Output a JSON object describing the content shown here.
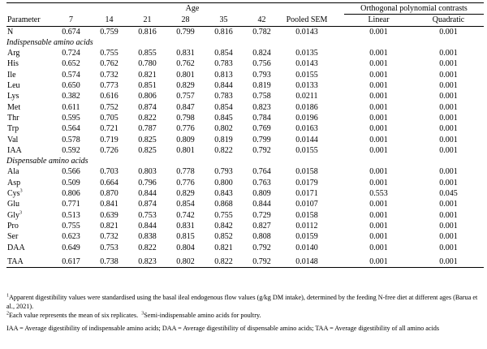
{
  "table": {
    "header": {
      "age_label": "Age",
      "ortho_label": "Orthogonal polynomial contrasts",
      "param_label": "Parameter",
      "ages": [
        "7",
        "14",
        "21",
        "28",
        "35",
        "42"
      ],
      "pooled_sem": "Pooled SEM",
      "linear": "Linear",
      "quadratic": "Quadratic"
    },
    "n_row": {
      "name": "N",
      "values": [
        "0.674",
        "0.759",
        "0.816",
        "0.799",
        "0.816",
        "0.782",
        "0.0143"
      ],
      "linear": "0.001",
      "quadratic": "0.001"
    },
    "sections": [
      {
        "title": "Indispensable amino acids",
        "rows": [
          {
            "name": "Arg",
            "sup": "",
            "values": [
              "0.724",
              "0.755",
              "0.855",
              "0.831",
              "0.854",
              "0.824",
              "0.0135"
            ],
            "linear": "0.001",
            "quadratic": "0.001"
          },
          {
            "name": "His",
            "sup": "",
            "values": [
              "0.652",
              "0.762",
              "0.780",
              "0.762",
              "0.783",
              "0.756",
              "0.0143"
            ],
            "linear": "0.001",
            "quadratic": "0.001"
          },
          {
            "name": "Ile",
            "sup": "",
            "values": [
              "0.574",
              "0.732",
              "0.821",
              "0.801",
              "0.813",
              "0.793",
              "0.0155"
            ],
            "linear": "0.001",
            "quadratic": "0.001"
          },
          {
            "name": "Leu",
            "sup": "",
            "values": [
              "0.650",
              "0.773",
              "0.851",
              "0.829",
              "0.844",
              "0.819",
              "0.0133"
            ],
            "linear": "0.001",
            "quadratic": "0.001"
          },
          {
            "name": "Lys",
            "sup": "",
            "values": [
              "0.382",
              "0.616",
              "0.806",
              "0.757",
              "0.783",
              "0.758",
              "0.0211"
            ],
            "linear": "0.001",
            "quadratic": "0.001"
          },
          {
            "name": "Met",
            "sup": "",
            "values": [
              "0.611",
              "0.752",
              "0.874",
              "0.847",
              "0.854",
              "0.823",
              "0.0186"
            ],
            "linear": "0.001",
            "quadratic": "0.001"
          },
          {
            "name": "Thr",
            "sup": "",
            "values": [
              "0.595",
              "0.705",
              "0.822",
              "0.798",
              "0.845",
              "0.784",
              "0.0196"
            ],
            "linear": "0.001",
            "quadratic": "0.001"
          },
          {
            "name": "Trp",
            "sup": "",
            "values": [
              "0.564",
              "0.721",
              "0.787",
              "0.776",
              "0.802",
              "0.769",
              "0.0163"
            ],
            "linear": "0.001",
            "quadratic": "0.001"
          },
          {
            "name": "Val",
            "sup": "",
            "values": [
              "0.578",
              "0.719",
              "0.825",
              "0.809",
              "0.819",
              "0.799",
              "0.0144"
            ],
            "linear": "0.001",
            "quadratic": "0.001"
          },
          {
            "name": "IAA",
            "sup": "",
            "values": [
              "0.592",
              "0.726",
              "0.825",
              "0.801",
              "0.822",
              "0.792",
              "0.0155"
            ],
            "linear": "0.001",
            "quadratic": "0.001"
          }
        ]
      },
      {
        "title": "Dispensable amino acids",
        "rows": [
          {
            "name": "Ala",
            "sup": "",
            "values": [
              "0.566",
              "0.703",
              "0.803",
              "0.778",
              "0.793",
              "0.764",
              "0.0158"
            ],
            "linear": "0.001",
            "quadratic": "0.001"
          },
          {
            "name": "Asp",
            "sup": "",
            "values": [
              "0.509",
              "0.664",
              "0.796",
              "0.776",
              "0.800",
              "0.763",
              "0.0179"
            ],
            "linear": "0.001",
            "quadratic": "0.001"
          },
          {
            "name": "Cys",
            "sup": "3",
            "values": [
              "0.806",
              "0.870",
              "0.844",
              "0.829",
              "0.843",
              "0.809",
              "0.0171"
            ],
            "linear": "0.553",
            "quadratic": "0.045"
          },
          {
            "name": "Glu",
            "sup": "",
            "values": [
              "0.771",
              "0.841",
              "0.874",
              "0.854",
              "0.868",
              "0.844",
              "0.0107"
            ],
            "linear": "0.001",
            "quadratic": "0.001"
          },
          {
            "name": "Gly",
            "sup": "3",
            "values": [
              "0.513",
              "0.639",
              "0.753",
              "0.742",
              "0.755",
              "0.729",
              "0.0158"
            ],
            "linear": "0.001",
            "quadratic": "0.001"
          },
          {
            "name": "Pro",
            "sup": "",
            "values": [
              "0.755",
              "0.821",
              "0.844",
              "0.831",
              "0.842",
              "0.827",
              "0.0112"
            ],
            "linear": "0.001",
            "quadratic": "0.001"
          },
          {
            "name": "Ser",
            "sup": "",
            "values": [
              "0.623",
              "0.732",
              "0.838",
              "0.815",
              "0.852",
              "0.808",
              "0.0159"
            ],
            "linear": "0.001",
            "quadratic": "0.001"
          },
          {
            "name": "DAA",
            "sup": "",
            "values": [
              "0.649",
              "0.753",
              "0.822",
              "0.804",
              "0.821",
              "0.792",
              "0.0140"
            ],
            "linear": "0.001",
            "quadratic": "0.001"
          }
        ]
      }
    ],
    "taa_row": {
      "name": "TAA",
      "values": [
        "0.617",
        "0.738",
        "0.823",
        "0.802",
        "0.822",
        "0.792",
        "0.0148"
      ],
      "linear": "0.001",
      "quadratic": "0.001"
    }
  },
  "footnotes": {
    "note1_sup": "1",
    "note1": "Apparent digestibility values were standardised using the basal ileal endogenous flow values (g/kg DM intake), determined by the feeding N-free diet at different ages (Barua et al., 2021).",
    "note2_sup": "2",
    "note2": "Each value represents the mean of six replicates.",
    "note3_sup": "3",
    "note3": "Semi-indispensable amino acids for poultry.",
    "abbrev": "IAA = Average digestibility of indispensable amino acids; DAA = Average digestibility of dispensable amino acids; TAA = Average digestibility of all amino acids"
  }
}
